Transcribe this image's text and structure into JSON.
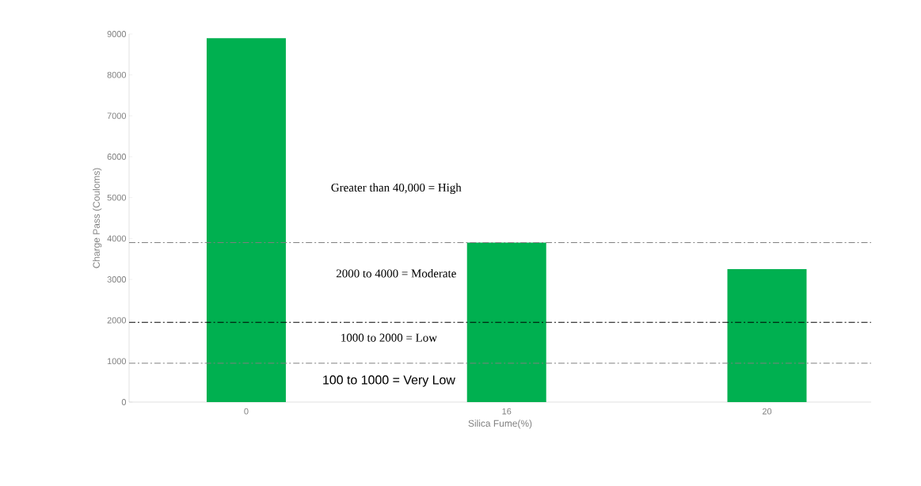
{
  "chart_data": {
    "type": "bar",
    "xlabel": "Silica Fume(%)",
    "ylabel": "Charge Pass (Couloms)",
    "categories": [
      "0",
      "16",
      "20"
    ],
    "values": [
      8900,
      3900,
      3250
    ],
    "color": "#00b050",
    "ylim": [
      0,
      9000
    ],
    "yticks": [
      0,
      1000,
      2000,
      3000,
      4000,
      5000,
      6000,
      7000,
      8000,
      9000
    ],
    "ref_lines": [
      {
        "axis": "y",
        "value": 3900,
        "color": "#808080"
      },
      {
        "axis": "y",
        "value": 1950,
        "color": "#000000"
      },
      {
        "axis": "y",
        "value": 950,
        "color": "#808080"
      }
    ],
    "annotations": [
      "Greater than 40,000 = High",
      "2000 to 4000 = Moderate",
      "1000 to 2000 = Low",
      "100 to 1000 = Very Low"
    ]
  }
}
